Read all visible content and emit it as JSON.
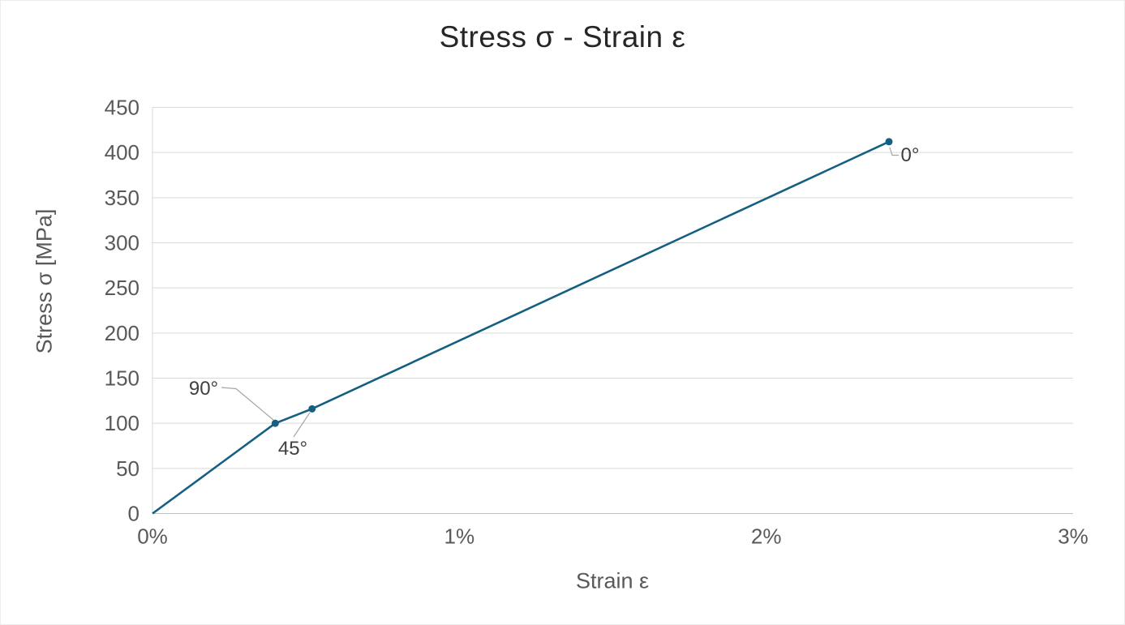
{
  "chart_data": {
    "type": "line",
    "title": "Stress σ - Strain ε",
    "xlabel": "Strain ε",
    "ylabel": "Stress σ [MPa]",
    "x_unit": "%",
    "xlim": [
      0,
      3
    ],
    "ylim": [
      0,
      450
    ],
    "x_ticks": [
      "0%",
      "1%",
      "2%",
      "3%"
    ],
    "x_tick_values": [
      0,
      1,
      2,
      3
    ],
    "y_ticks": [
      "0",
      "50",
      "100",
      "150",
      "200",
      "250",
      "300",
      "350",
      "400",
      "450"
    ],
    "y_tick_step": 50,
    "grid": "horizontal-only",
    "legend": "none",
    "series": [
      {
        "name": "stress-strain-curve",
        "color": "#156082",
        "marker": "circle",
        "points": [
          {
            "x": 0.0,
            "y": 0
          },
          {
            "x": 0.4,
            "y": 100,
            "label": "90°"
          },
          {
            "x": 0.52,
            "y": 116,
            "label": "45°"
          },
          {
            "x": 2.4,
            "y": 412,
            "label": "0°"
          }
        ]
      }
    ],
    "colors": {
      "line": "#156082",
      "gridline": "#D9D9D9",
      "axis_line": "#BFBFBF",
      "tick_text": "#595959",
      "title_text": "#262626",
      "label_text": "#404040",
      "leader_line": "#A6A6A6"
    }
  }
}
